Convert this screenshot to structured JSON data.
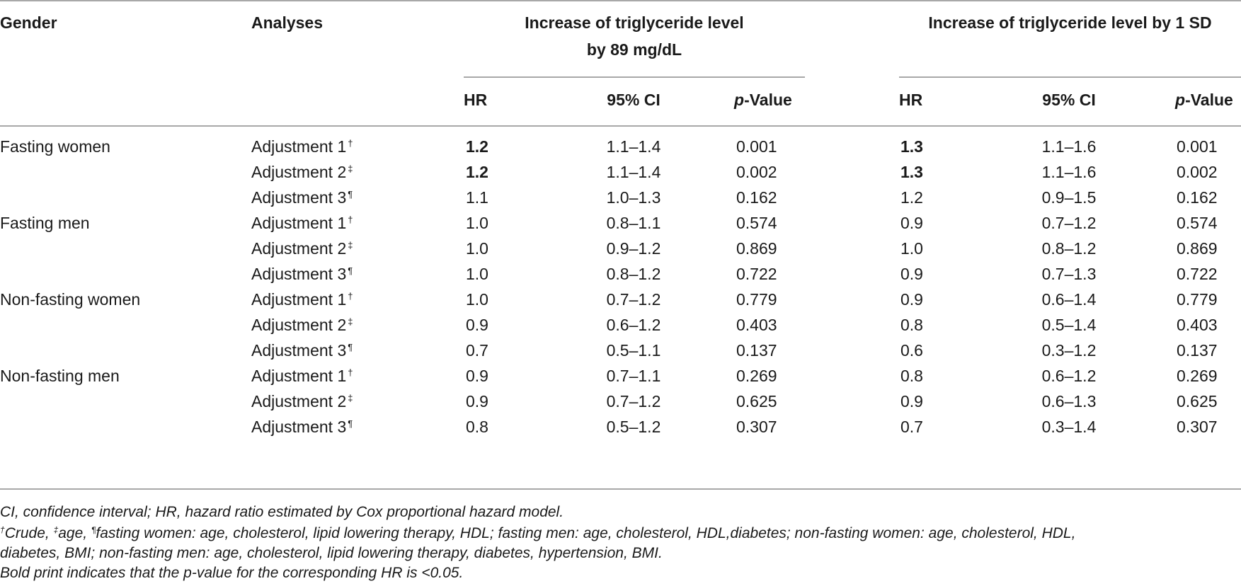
{
  "header": {
    "gender": "Gender",
    "analyses": "Analyses",
    "group1_line1": "Increase of triglyceride level",
    "group1_line2": "by 89 mg/dL",
    "group2": "Increase of triglyceride level by 1 SD",
    "hr": "HR",
    "ci": "95% CI",
    "p_italic": "p",
    "p_rest": "-Value"
  },
  "rows": [
    {
      "gender": "Fasting women",
      "adj": "Adjustment 1",
      "mark": "†",
      "hr1": "1.2",
      "ci1": "1.1–1.4",
      "p1": "0.001",
      "hr2": "1.3",
      "ci2": "1.1–1.6",
      "p2": "0.001",
      "bold": true
    },
    {
      "gender": "",
      "adj": "Adjustment 2",
      "mark": "‡",
      "hr1": "1.2",
      "ci1": "1.1–1.4",
      "p1": "0.002",
      "hr2": "1.3",
      "ci2": "1.1–1.6",
      "p2": "0.002",
      "bold": true
    },
    {
      "gender": "",
      "adj": "Adjustment 3",
      "mark": "¶",
      "hr1": "1.1",
      "ci1": "1.0–1.3",
      "p1": "0.162",
      "hr2": "1.2",
      "ci2": "0.9–1.5",
      "p2": "0.162",
      "bold": false
    },
    {
      "gender": "Fasting men",
      "adj": "Adjustment 1",
      "mark": "†",
      "hr1": "1.0",
      "ci1": "0.8–1.1",
      "p1": "0.574",
      "hr2": "0.9",
      "ci2": "0.7–1.2",
      "p2": "0.574",
      "bold": false
    },
    {
      "gender": "",
      "adj": "Adjustment 2",
      "mark": "‡",
      "hr1": "1.0",
      "ci1": "0.9–1.2",
      "p1": "0.869",
      "hr2": "1.0",
      "ci2": "0.8–1.2",
      "p2": "0.869",
      "bold": false
    },
    {
      "gender": "",
      "adj": "Adjustment 3",
      "mark": "¶",
      "hr1": "1.0",
      "ci1": "0.8–1.2",
      "p1": "0.722",
      "hr2": "0.9",
      "ci2": "0.7–1.3",
      "p2": "0.722",
      "bold": false
    },
    {
      "gender": "Non-fasting women",
      "adj": "Adjustment 1",
      "mark": "†",
      "hr1": "1.0",
      "ci1": "0.7–1.2",
      "p1": "0.779",
      "hr2": "0.9",
      "ci2": "0.6–1.4",
      "p2": "0.779",
      "bold": false
    },
    {
      "gender": "",
      "adj": "Adjustment 2",
      "mark": "‡",
      "hr1": "0.9",
      "ci1": "0.6–1.2",
      "p1": "0.403",
      "hr2": "0.8",
      "ci2": "0.5–1.4",
      "p2": "0.403",
      "bold": false
    },
    {
      "gender": "",
      "adj": "Adjustment 3",
      "mark": "¶",
      "hr1": "0.7",
      "ci1": "0.5–1.1",
      "p1": "0.137",
      "hr2": "0.6",
      "ci2": "0.3–1.2",
      "p2": "0.137",
      "bold": false
    },
    {
      "gender": "Non-fasting men",
      "adj": "Adjustment 1",
      "mark": "†",
      "hr1": "0.9",
      "ci1": "0.7–1.1",
      "p1": "0.269",
      "hr2": "0.8",
      "ci2": "0.6–1.2",
      "p2": "0.269",
      "bold": false
    },
    {
      "gender": "",
      "adj": "Adjustment 2",
      "mark": "‡",
      "hr1": "0.9",
      "ci1": "0.7–1.2",
      "p1": "0.625",
      "hr2": "0.9",
      "ci2": "0.6–1.3",
      "p2": "0.625",
      "bold": false
    },
    {
      "gender": "",
      "adj": "Adjustment 3",
      "mark": "¶",
      "hr1": "0.8",
      "ci1": "0.5–1.2",
      "p1": "0.307",
      "hr2": "0.7",
      "ci2": "0.3–1.4",
      "p2": "0.307",
      "bold": false
    }
  ],
  "footnotes": {
    "line1": "CI, confidence interval; HR, hazard ratio estimated by Cox proportional hazard model.",
    "dagger": "†",
    "crude": "Crude, ",
    "ddagger": "‡",
    "age": "age, ",
    "pilcrow": "¶",
    "line2_rest": "fasting women: age, cholesterol, lipid lowering therapy, HDL; fasting men: age, cholesterol, HDL,diabetes; non-fasting women: age, cholesterol, HDL,",
    "line3": "diabetes, BMI; non-fasting men: age, cholesterol, lipid lowering therapy, diabetes, hypertension, BMI.",
    "line4": "Bold print indicates that the p-value for the corresponding HR is <0.05."
  }
}
